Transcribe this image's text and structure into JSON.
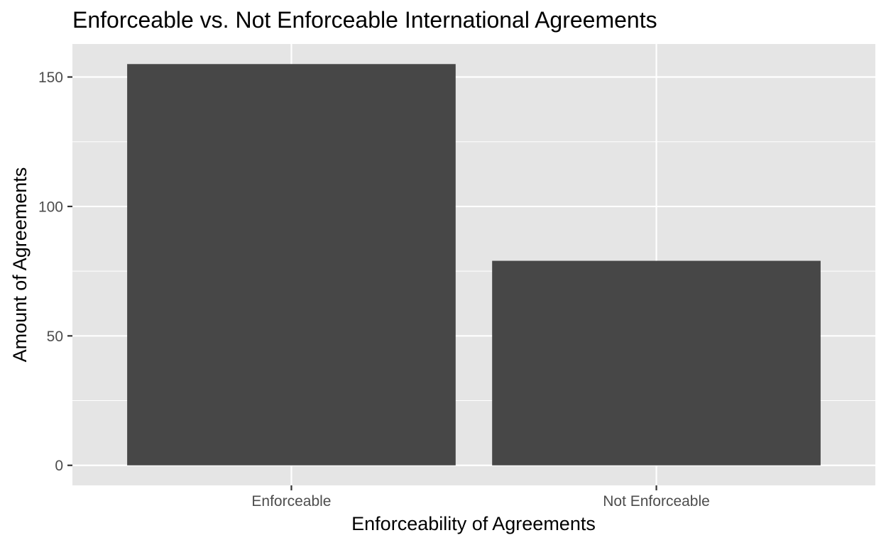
{
  "chart_data": {
    "type": "bar",
    "title": "Enforceable vs. Not Enforceable International Agreements",
    "xlabel": "Enforceability of Agreements",
    "ylabel": "Amount of Agreements",
    "categories": [
      "Enforceable",
      "Not Enforceable"
    ],
    "values": [
      155,
      79
    ],
    "ylim": [
      -7.75,
      162.75
    ],
    "yticks": [
      0,
      50,
      100,
      150
    ],
    "grid": true,
    "legend": "none",
    "colors": {
      "bar": "#474747",
      "panel": "#e5e5e5",
      "grid": "#ffffff",
      "tick_text": "#4d4d4d",
      "tick_mark": "#333333"
    }
  }
}
